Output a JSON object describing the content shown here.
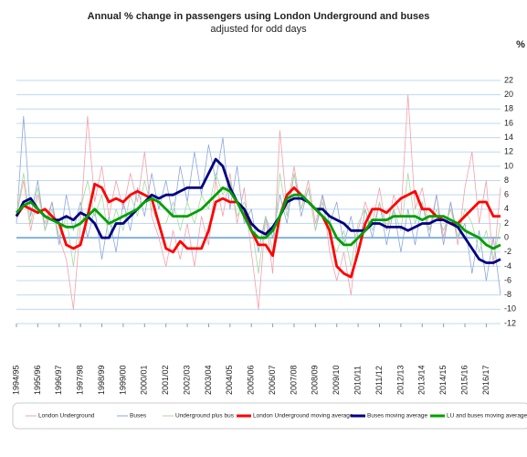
{
  "chart_data": {
    "type": "line",
    "title": "Annual % change in passengers using London Underground and buses",
    "subtitle": "adjusted for odd days",
    "y_unit": "%",
    "categories": [
      "1994/95",
      null,
      null,
      "1995/96",
      null,
      null,
      "1996/97",
      null,
      null,
      "1997/98",
      null,
      null,
      "1998/99",
      null,
      null,
      "1999/00",
      null,
      null,
      "2000/01",
      null,
      null,
      "2001/02",
      null,
      null,
      "2002/03",
      null,
      null,
      "2003/04",
      null,
      null,
      "2004/05",
      null,
      null,
      "2005/06",
      null,
      null,
      "2006/07",
      null,
      null,
      "2007/08",
      null,
      null,
      "2008/09",
      null,
      null,
      "2009/10",
      null,
      null,
      "2010/11",
      null,
      null,
      "2011/12",
      null,
      null,
      "2012/13",
      null,
      null,
      "2013/14",
      null,
      null,
      "2014/15",
      null,
      null,
      "2015/16",
      null,
      null,
      "2016/17",
      null,
      null
    ],
    "ylim": [
      -12,
      22
    ],
    "yticks": [
      -12,
      -10,
      -8,
      -6,
      -4,
      -2,
      0,
      2,
      4,
      6,
      8,
      10,
      12,
      14,
      16,
      18,
      20,
      22
    ],
    "grid": true,
    "series": [
      {
        "name": "London Underground",
        "color": "#f4a0a8",
        "values": [
          3,
          8,
          1,
          6,
          2,
          5,
          0,
          -3,
          -10,
          2,
          17,
          5,
          10,
          3,
          8,
          4,
          9,
          5,
          12,
          3,
          0,
          -4,
          1,
          -3,
          2,
          -4,
          3,
          -1,
          8,
          3,
          9,
          2,
          7,
          -2,
          -10,
          3,
          -5,
          15,
          4,
          10,
          4,
          8,
          2,
          6,
          -2,
          -6,
          -2,
          -8,
          1,
          5,
          2,
          7,
          1,
          6,
          3,
          20,
          4,
          7,
          1,
          6,
          0,
          5,
          -1,
          7,
          12,
          2,
          8,
          -4,
          7
        ]
      },
      {
        "name": "Buses",
        "color": "#8fa6d8",
        "values": [
          2,
          17,
          3,
          8,
          1,
          5,
          -1,
          6,
          1,
          5,
          0,
          4,
          -3,
          3,
          -2,
          5,
          1,
          7,
          3,
          9,
          4,
          8,
          3,
          10,
          5,
          12,
          6,
          13,
          8,
          14,
          4,
          10,
          2,
          4,
          -2,
          3,
          0,
          6,
          2,
          9,
          3,
          7,
          1,
          6,
          2,
          5,
          -1,
          3,
          -2,
          4,
          0,
          5,
          -1,
          4,
          -2,
          4,
          -1,
          5,
          0,
          6,
          -1,
          5,
          0,
          2,
          -5,
          1,
          -6,
          0,
          -8
        ]
      },
      {
        "name": "Underground plus bus",
        "color": "#a8d8a0",
        "values": [
          3,
          9,
          2,
          7,
          1,
          4,
          0,
          3,
          -4,
          4,
          8,
          3,
          6,
          0,
          4,
          1,
          6,
          3,
          8,
          4,
          2,
          2,
          5,
          1,
          5,
          2,
          6,
          4,
          9,
          6,
          8,
          3,
          5,
          2,
          -5,
          3,
          -2,
          9,
          3,
          9,
          4,
          7,
          1,
          5,
          0,
          -2,
          1,
          -4,
          2,
          4,
          1,
          5,
          1,
          4,
          1,
          9,
          2,
          5,
          1,
          4,
          1,
          4,
          0,
          4,
          2,
          -2,
          1,
          -3,
          2
        ]
      },
      {
        "name": "London Underground moving average",
        "color": "#ff0000",
        "values": [
          3,
          4.5,
          4,
          3.5,
          4,
          3,
          2,
          -1,
          -1.5,
          -1,
          3,
          7.5,
          7,
          5,
          5.5,
          5,
          6,
          6.5,
          6,
          5.5,
          2,
          -1.5,
          -2,
          -0.5,
          -1.5,
          -1.5,
          -1.5,
          1,
          5,
          5.5,
          5,
          5,
          4,
          1,
          -1,
          -1,
          -2.5,
          3,
          6,
          7,
          6,
          5,
          4,
          3,
          1,
          -4,
          -5,
          -5.5,
          -2,
          2,
          4,
          4,
          3.5,
          4.5,
          5.5,
          6,
          6.5,
          4,
          4,
          3,
          2.5,
          2,
          2,
          3,
          4,
          5,
          5,
          3,
          3
        ]
      },
      {
        "name": "Buses moving average",
        "color": "#000080",
        "values": [
          3,
          5,
          5.5,
          4,
          3,
          2.5,
          2.5,
          3,
          2.5,
          3.5,
          3,
          2,
          0,
          0,
          2,
          2,
          3,
          4,
          5,
          6,
          5.5,
          6,
          6,
          6.5,
          7,
          7,
          7,
          9,
          11,
          10,
          7,
          5,
          4,
          2,
          1,
          0.5,
          1.5,
          3,
          5,
          5.5,
          5.5,
          5,
          4,
          4,
          3,
          2.5,
          2,
          1,
          1,
          1,
          2,
          2,
          1.5,
          1.5,
          1.5,
          1,
          1.5,
          2,
          2,
          2.5,
          2.5,
          2,
          1.5,
          0,
          -1.5,
          -3,
          -3.5,
          -3.5,
          -3
        ]
      },
      {
        "name": "LU and buses moving average",
        "color": "#00a000",
        "values": [
          3.5,
          4.5,
          5,
          4,
          3,
          2.5,
          2,
          1.5,
          1.5,
          2,
          3,
          4,
          3,
          2,
          2.5,
          3,
          3.5,
          4,
          5,
          5.5,
          5,
          4,
          3,
          3,
          3,
          3.5,
          4,
          5,
          6,
          7,
          6.5,
          5,
          3,
          1,
          0,
          0,
          1,
          3,
          5.5,
          6,
          6,
          5,
          4,
          3,
          2,
          0,
          -1,
          -1,
          0,
          1,
          2.5,
          2.5,
          2.5,
          3,
          3,
          3,
          3,
          2.5,
          3,
          3,
          3,
          2.5,
          2,
          1,
          0.5,
          0,
          -1,
          -1.5,
          -1
        ]
      }
    ]
  }
}
